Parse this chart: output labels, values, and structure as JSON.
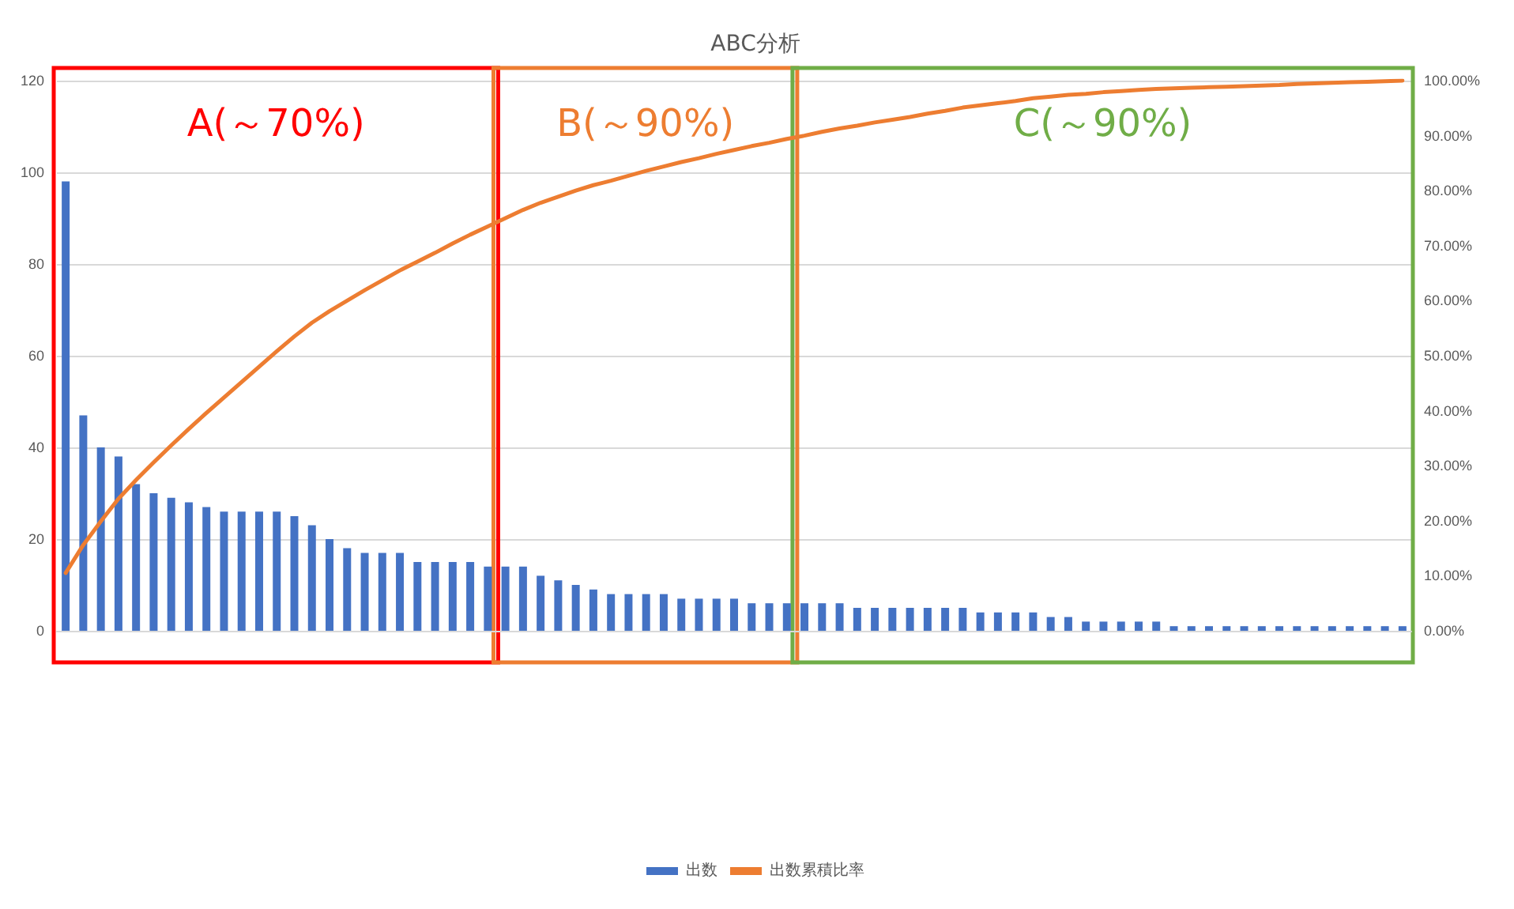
{
  "chart_data": {
    "type": "bar",
    "title": "ABC分析",
    "categories": [
      null,
      null,
      null,
      null,
      null,
      null,
      null,
      null,
      null,
      null,
      null,
      null,
      null,
      null,
      null,
      null,
      null,
      null,
      null,
      null,
      null,
      null,
      null,
      null,
      null,
      null,
      null,
      null,
      null,
      null,
      null,
      null,
      null,
      null,
      null,
      null,
      null,
      null,
      null,
      null,
      null,
      null,
      null,
      null,
      null,
      null,
      null,
      null,
      null,
      null,
      null,
      null,
      null,
      null,
      null,
      null,
      null,
      null,
      null,
      null,
      null,
      null,
      null,
      null,
      null,
      null,
      null,
      null,
      null,
      null,
      null,
      null,
      null,
      null,
      null,
      null,
      null
    ],
    "series": [
      {
        "name": "出数",
        "color": "#4472c4",
        "values": [
          98,
          47,
          40,
          38,
          32,
          30,
          29,
          28,
          27,
          26,
          26,
          26,
          26,
          25,
          23,
          20,
          18,
          17,
          17,
          17,
          15,
          15,
          15,
          15,
          14,
          14,
          14,
          12,
          11,
          10,
          9,
          8,
          8,
          8,
          8,
          7,
          7,
          7,
          7,
          6,
          6,
          6,
          6,
          6,
          6,
          5,
          5,
          5,
          5,
          5,
          5,
          5,
          4,
          4,
          4,
          4,
          3,
          3,
          2,
          2,
          2,
          2,
          2,
          1,
          1,
          1,
          1,
          1,
          1,
          1,
          1,
          1,
          1,
          1,
          1,
          1,
          1
        ]
      },
      {
        "name": "出数累積比率",
        "type": "line",
        "axis": "y2",
        "color": "#ed7d31",
        "values": [
          10.5,
          15.6,
          19.9,
          24.0,
          27.4,
          30.6,
          33.7,
          36.7,
          39.6,
          42.4,
          45.2,
          48.0,
          50.8,
          53.5,
          56.0,
          58.1,
          60.0,
          61.9,
          63.7,
          65.5,
          67.1,
          68.7,
          70.4,
          72.0,
          73.5,
          75.0,
          76.5,
          77.8,
          78.9,
          80.0,
          81.0,
          81.8,
          82.7,
          83.6,
          84.4,
          85.2,
          85.9,
          86.7,
          87.4,
          88.1,
          88.7,
          89.4,
          90.0,
          90.7,
          91.3,
          91.8,
          92.4,
          92.9,
          93.4,
          94.0,
          94.5,
          95.1,
          95.5,
          95.9,
          96.3,
          96.8,
          97.1,
          97.4,
          97.6,
          97.9,
          98.1,
          98.3,
          98.5,
          98.6,
          98.7,
          98.8,
          98.9,
          99.0,
          99.1,
          99.2,
          99.4,
          99.5,
          99.6,
          99.7,
          99.8,
          99.9,
          100.0
        ]
      }
    ],
    "ylim": [
      0,
      120
    ],
    "yticks": [
      0,
      20,
      40,
      60,
      80,
      100,
      120
    ],
    "y2lim": [
      0,
      100
    ],
    "y2ticks": [
      {
        "value": 0,
        "label": "0.00%"
      },
      {
        "value": 10,
        "label": "10.00%"
      },
      {
        "value": 20,
        "label": "20.00%"
      },
      {
        "value": 30,
        "label": "30.00%"
      },
      {
        "value": 40,
        "label": "40.00%"
      },
      {
        "value": 50,
        "label": "50.00%"
      },
      {
        "value": 60,
        "label": "60.00%"
      },
      {
        "value": 70,
        "label": "70.00%"
      },
      {
        "value": 80,
        "label": "80.00%"
      },
      {
        "value": 90,
        "label": "90.00%"
      },
      {
        "value": 100,
        "label": "100.00%"
      }
    ],
    "annotations": [
      "A(～70%)",
      "B(～90%)",
      "C(～90%)"
    ],
    "grid": "y",
    "legend": "bottom",
    "marker": "none",
    "line_style": "solid"
  }
}
